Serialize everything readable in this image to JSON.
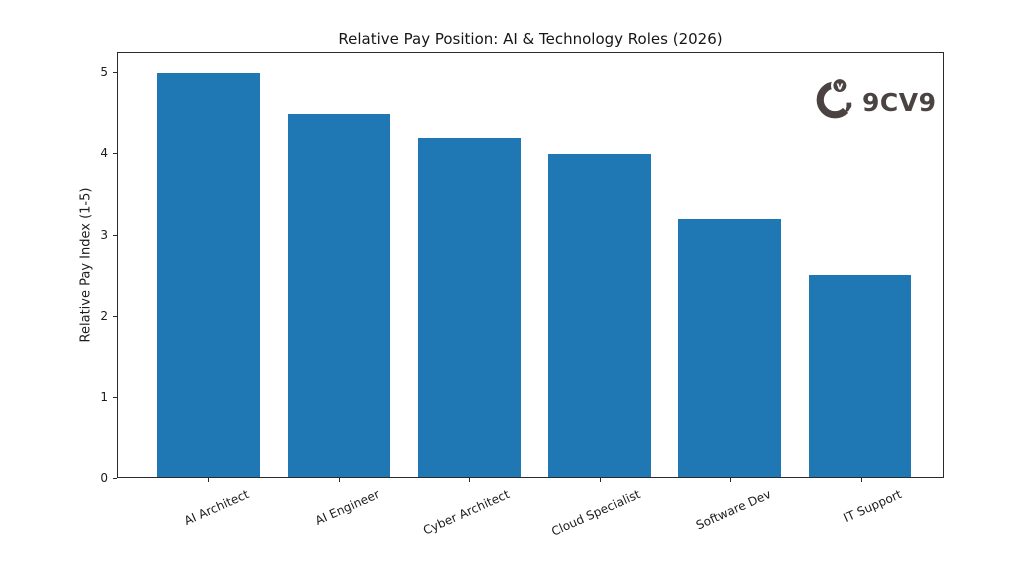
{
  "title": "Relative Pay Position: AI & Technology Roles (2026)",
  "logo": {
    "text": "9CV9",
    "icon_letter": "v",
    "color": "#4a4341"
  },
  "chart_data": {
    "type": "bar",
    "title": "Relative Pay Position: AI & Technology Roles (2026)",
    "categories": [
      "AI Architect",
      "AI Engineer",
      "Cyber Architect",
      "Cloud Specialist",
      "Software Dev",
      "IT Support"
    ],
    "values": [
      5.0,
      4.5,
      4.2,
      4.0,
      3.2,
      2.5
    ],
    "xlabel": "",
    "ylabel": "Relative Pay Index (1-5)",
    "ylim": [
      0,
      5.25
    ],
    "yticks": [
      0,
      1,
      2,
      3,
      4,
      5
    ],
    "bar_color": "#1f77b4",
    "axis_color": "#2b2b2b",
    "grid": false,
    "legend": null,
    "xtick_rotation": 24
  }
}
